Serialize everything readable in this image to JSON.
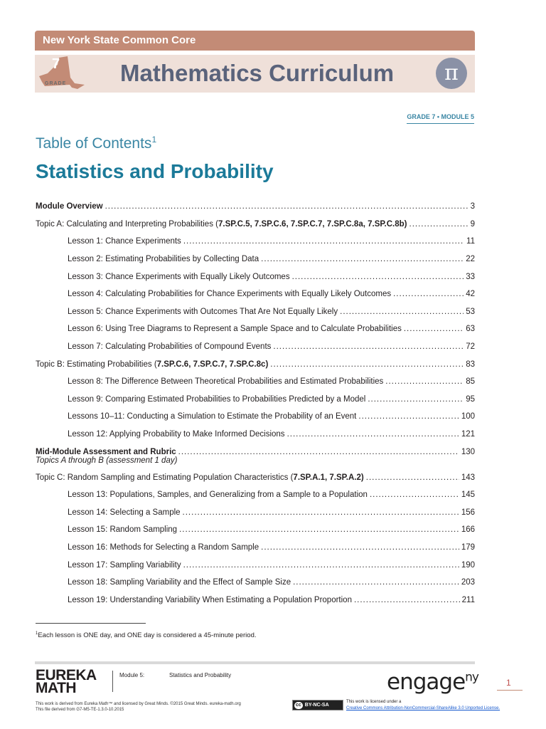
{
  "header": {
    "banner_text": "New York State Common Core",
    "grade_number": "7",
    "grade_label": "GRADE",
    "curriculum_title": "Mathematics Curriculum",
    "pi_symbol": "π",
    "grade_module": "GRADE 7 • MODULE 5"
  },
  "toc": {
    "title": "Table of Contents",
    "title_footnote_ref": "1",
    "module_title": "Statistics and Probability",
    "entries": [
      {
        "type": "major",
        "text": "Module Overview",
        "page": "3"
      },
      {
        "type": "topic",
        "text": "Topic A:  Calculating and Interpreting Probabilities (",
        "standards": "7.SP.C.5, 7.SP.C.6, 7.SP.C.7, 7.SP.C.8a, 7.SP.C.8b",
        "close": ")",
        "page": "9"
      },
      {
        "type": "lesson",
        "text": "Lesson 1:  Chance Experiments",
        "page": "11"
      },
      {
        "type": "lesson",
        "text": "Lesson 2:  Estimating Probabilities by Collecting Data",
        "page": "22"
      },
      {
        "type": "lesson",
        "text": "Lesson 3:  Chance Experiments with Equally Likely Outcomes",
        "page": "33"
      },
      {
        "type": "lesson",
        "text": "Lesson 4:  Calculating Probabilities for Chance Experiments with Equally Likely Outcomes",
        "page": "42"
      },
      {
        "type": "lesson",
        "text": "Lesson 5:  Chance Experiments with Outcomes That Are Not Equally Likely",
        "page": "53"
      },
      {
        "type": "lesson",
        "text": "Lesson 6:  Using Tree Diagrams to Represent a Sample Space and to Calculate Probabilities",
        "page": "63"
      },
      {
        "type": "lesson",
        "text": "Lesson 7:  Calculating Probabilities of Compound Events",
        "page": "72"
      },
      {
        "type": "topic",
        "text": "Topic B:  Estimating Probabilities (",
        "standards": "7.SP.C.6, 7.SP.C.7, 7.SP.C.8c",
        "close": ")",
        "page": "83"
      },
      {
        "type": "lesson",
        "text": "Lesson 8:  The Difference Between Theoretical Probabilities and Estimated Probabilities",
        "page": "85"
      },
      {
        "type": "lesson",
        "text": "Lesson 9:  Comparing Estimated Probabilities to Probabilities Predicted by a Model",
        "page": "95"
      },
      {
        "type": "lesson",
        "text": "Lessons 10–11:  Conducting a Simulation to Estimate the Probability of an Event",
        "page": "100"
      },
      {
        "type": "lesson",
        "text": "Lesson 12:  Applying Probability to Make Informed Decisions",
        "page": "121"
      },
      {
        "type": "major",
        "text": "Mid-Module Assessment and Rubric",
        "page": "130",
        "sub": "Topics A through B (assessment 1 day)"
      },
      {
        "type": "topic",
        "text": "Topic C:  Random Sampling and Estimating Population Characteristics (",
        "standards": "7.SP.A.1, 7.SP.A.2",
        "close": ")",
        "page": "143"
      },
      {
        "type": "lesson",
        "text": "Lesson 13:  Populations, Samples, and Generalizing from a Sample to a Population",
        "page": "145"
      },
      {
        "type": "lesson",
        "text": "Lesson 14:  Selecting a Sample",
        "page": "156"
      },
      {
        "type": "lesson",
        "text": "Lesson 15:  Random Sampling",
        "page": "166"
      },
      {
        "type": "lesson",
        "text": "Lesson 16:  Methods for Selecting a Random Sample",
        "page": "179"
      },
      {
        "type": "lesson",
        "text": "Lesson 17:  Sampling Variability",
        "page": "190"
      },
      {
        "type": "lesson",
        "text": "Lesson 18:  Sampling Variability and the Effect of Sample Size",
        "page": "203"
      },
      {
        "type": "lesson",
        "text": "Lesson 19:  Understanding Variability When Estimating a Population Proportion",
        "page": "211"
      }
    ]
  },
  "footnote": {
    "ref": "1",
    "text": "Each lesson is ONE day, and ONE day is considered a 45-minute period."
  },
  "footer": {
    "logo_line1": "EUREKA",
    "logo_line2": "MATH",
    "module_label": "Module 5:",
    "module_name": "Statistics and Probability",
    "engage_logo": "engage",
    "engage_sup": "ny",
    "page_number": "1",
    "derived_line1": "This work is derived from Eureka Math™ and licensed by Great Minds. ©2015 Great Minds. eureka-math.org",
    "derived_line2": "This file derived from G7-M5-TE-1.3.0-10.2015",
    "cc_badge_circle": "cc",
    "cc_badge": "BY-NC-SA",
    "license_line1": "This work is licensed under a",
    "license_link": "Creative Commons Attribution-NonCommercial-ShareAlike 3.0 Unported License."
  },
  "colors": {
    "banner": "#c38b76",
    "banner_light": "#efe0d9",
    "title_blue": "#1b7a99",
    "accent_blue": "#3a86a4",
    "pi_circle": "#8a91a6"
  }
}
